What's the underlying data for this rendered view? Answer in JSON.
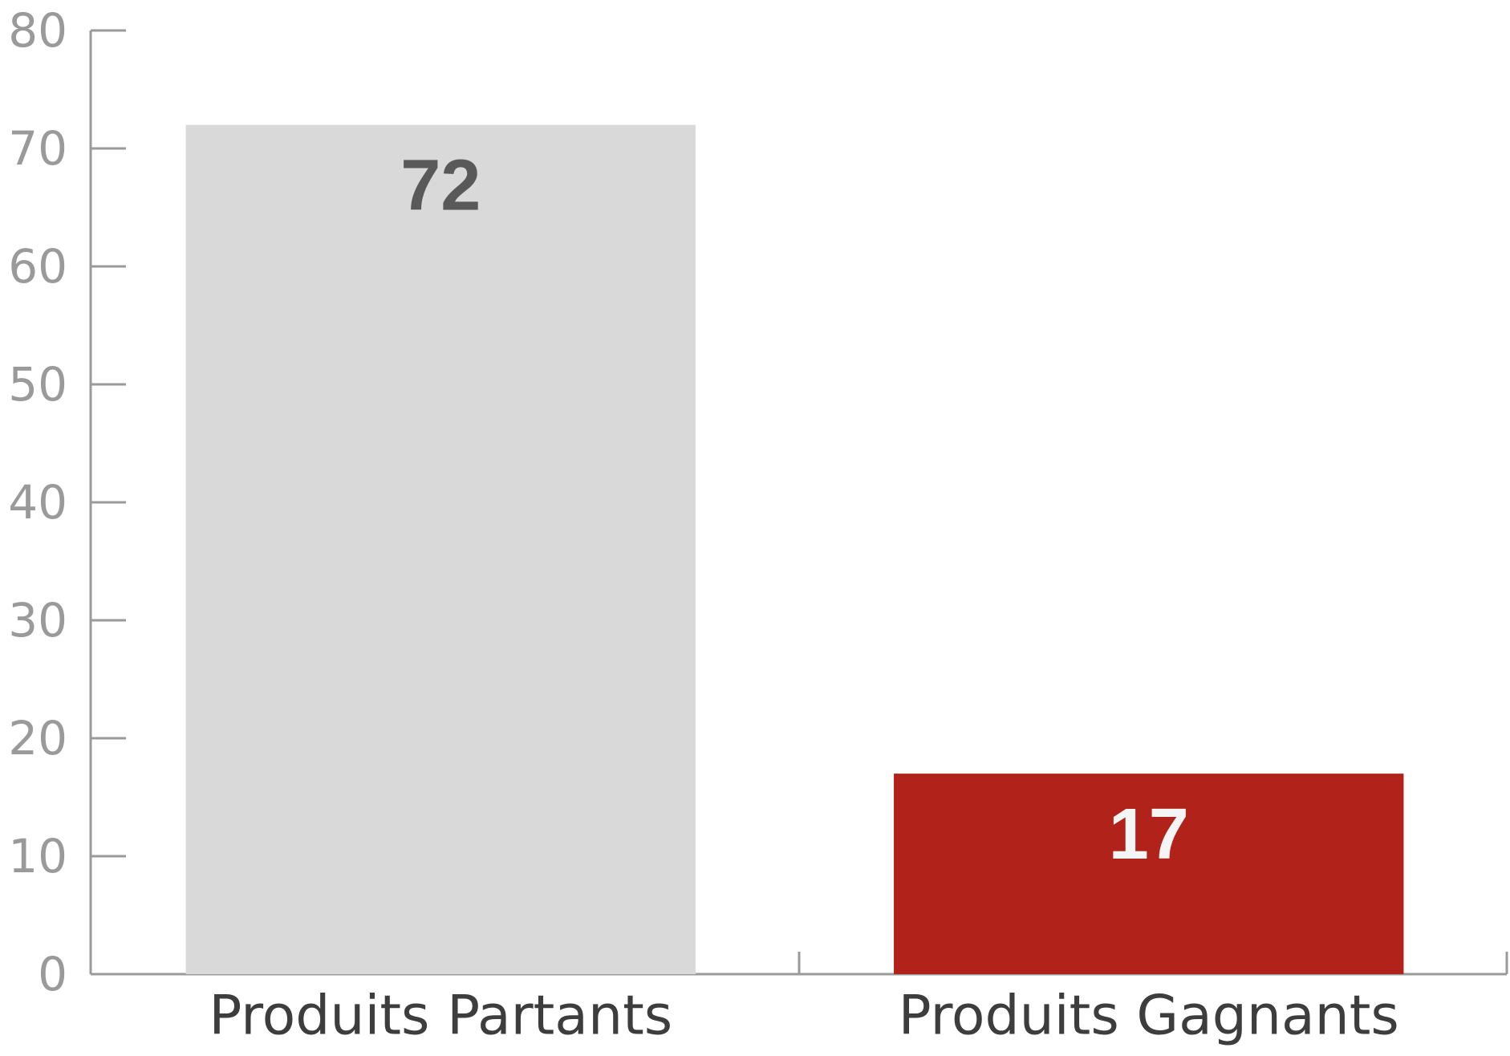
{
  "chart_data": {
    "type": "bar",
    "categories": [
      "Produits Partants",
      "Produits Gagnants"
    ],
    "values": [
      72,
      17
    ],
    "colors": [
      "#d9d9d9",
      "#b0221a"
    ],
    "ylim": [
      0,
      80
    ],
    "yticks": [
      0,
      10,
      20,
      30,
      40,
      50,
      60,
      70,
      80
    ]
  }
}
